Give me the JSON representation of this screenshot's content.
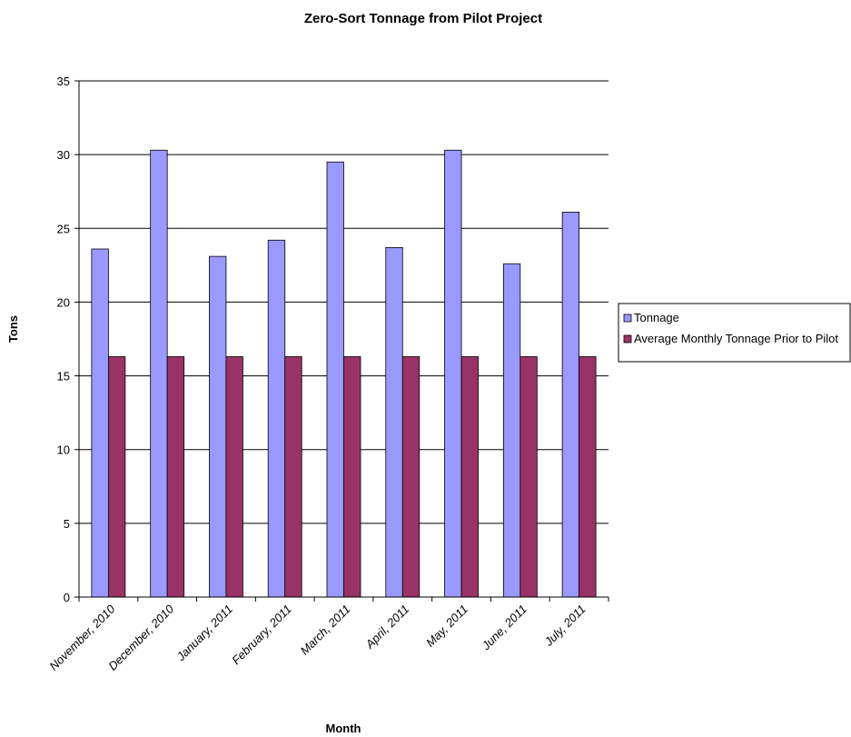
{
  "chart_data": {
    "type": "bar",
    "title": "Zero-Sort Tonnage from Pilot Project",
    "xlabel": "Month",
    "ylabel": "Tons",
    "ylim": [
      0,
      35
    ],
    "yticks": [
      0,
      5,
      10,
      15,
      20,
      25,
      30,
      35
    ],
    "grid": true,
    "legend_position": "right",
    "categories": [
      "November, 2010",
      "December, 2010",
      "January, 2011",
      "February, 2011",
      "March, 2011",
      "April, 2011",
      "May, 2011",
      "June, 2011",
      "July, 2011"
    ],
    "series": [
      {
        "name": "Tonnage",
        "color": "#9999ff",
        "values": [
          23.6,
          30.3,
          23.1,
          24.2,
          29.5,
          23.7,
          30.3,
          22.6,
          26.1
        ]
      },
      {
        "name": "Average Monthly Tonnage Prior to Pilot",
        "color": "#993366",
        "values": [
          16.3,
          16.3,
          16.3,
          16.3,
          16.3,
          16.3,
          16.3,
          16.3,
          16.3
        ]
      }
    ]
  }
}
